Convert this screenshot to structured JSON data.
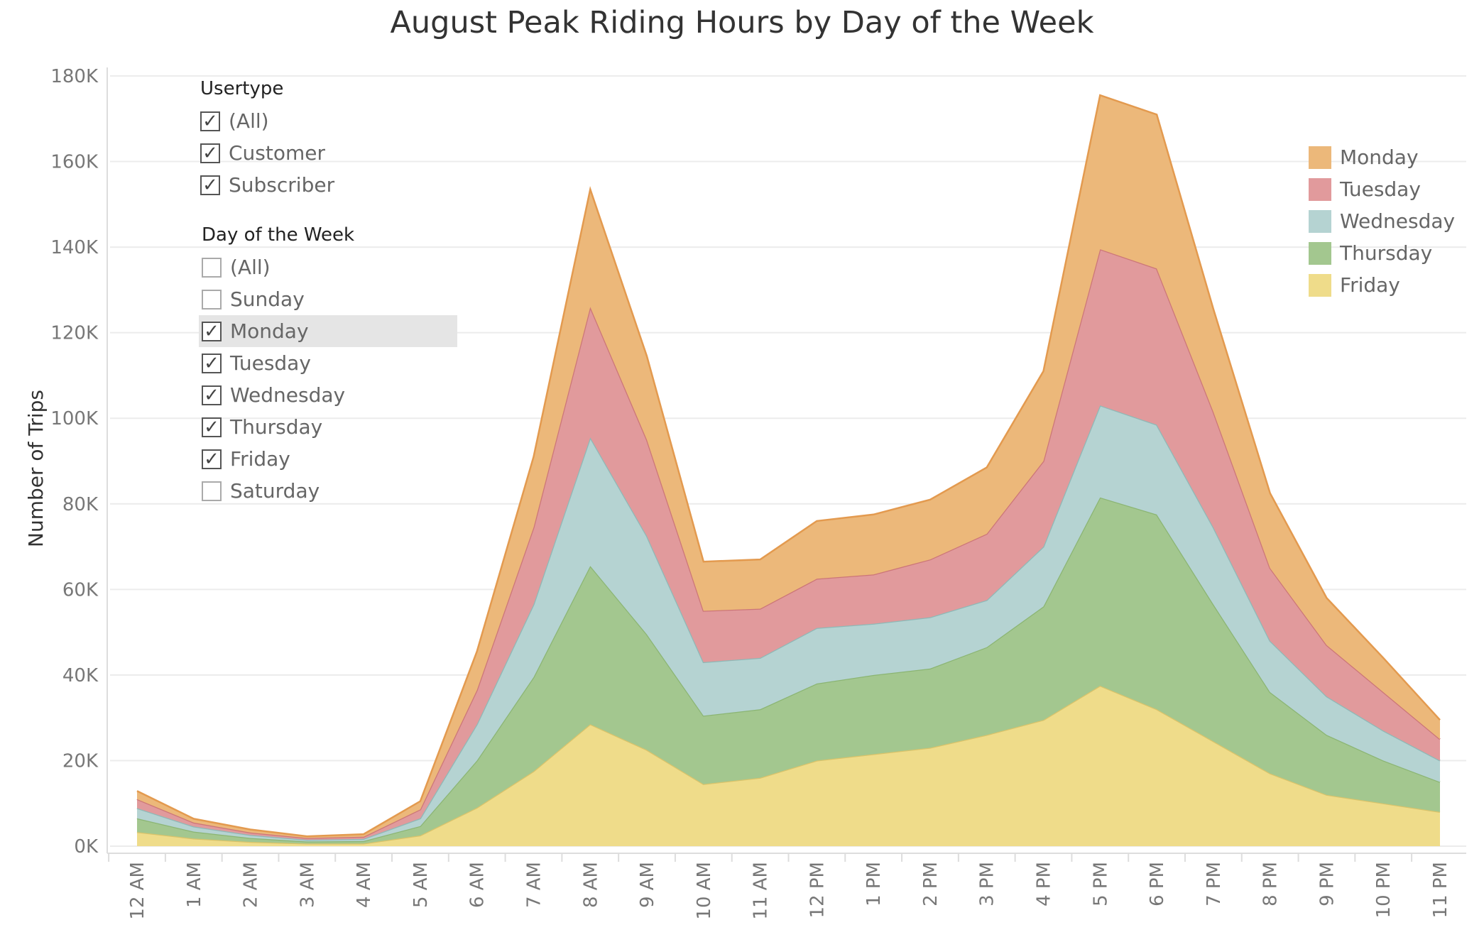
{
  "chart_data": {
    "type": "area",
    "title": "August Peak Riding Hours by Day of the Week",
    "xlabel": "",
    "ylabel": "Number of Trips",
    "stacked": true,
    "ylim": [
      0,
      180000
    ],
    "y_ticks": [
      "0K",
      "20K",
      "40K",
      "60K",
      "80K",
      "100K",
      "120K",
      "140K",
      "160K",
      "180K"
    ],
    "categories": [
      "12 AM",
      "1 AM",
      "2 AM",
      "3 AM",
      "4 AM",
      "5 AM",
      "6 AM",
      "7 AM",
      "8 AM",
      "9 AM",
      "10 AM",
      "11 AM",
      "12 PM",
      "1 PM",
      "2 PM",
      "3 PM",
      "4 PM",
      "5 PM",
      "6 PM",
      "7 PM",
      "8 PM",
      "9 PM",
      "10 PM",
      "11 PM"
    ],
    "series": [
      {
        "name": "Friday",
        "color": "#efdc8a",
        "line": "#d9c36a",
        "values": [
          3300,
          1800,
          1000,
          600,
          600,
          2500,
          9000,
          17500,
          28500,
          22500,
          14500,
          16000,
          20000,
          21500,
          23000,
          26000,
          29500,
          37500,
          32000,
          24500,
          17000,
          12000,
          10000,
          8000
        ]
      },
      {
        "name": "Thursday",
        "color": "#a3c78f",
        "line": "#8bb573",
        "values": [
          3200,
          1600,
          900,
          500,
          600,
          2200,
          11000,
          22000,
          37000,
          27000,
          16000,
          16000,
          18000,
          18500,
          18500,
          20500,
          26500,
          44000,
          45500,
          32000,
          19000,
          14000,
          10000,
          7000
        ]
      },
      {
        "name": "Wednesday",
        "color": "#b5d3d2",
        "line": "#8fb8b6",
        "values": [
          2400,
          1200,
          700,
          400,
          500,
          1800,
          8500,
          17000,
          30000,
          23000,
          12500,
          12000,
          13000,
          12000,
          12000,
          11000,
          14000,
          21500,
          21000,
          18000,
          12000,
          9000,
          7000,
          5000
        ]
      },
      {
        "name": "Tuesday",
        "color": "#e19a9c",
        "line": "#cc7678",
        "values": [
          2100,
          900,
          600,
          400,
          500,
          2100,
          8000,
          18000,
          30500,
          22500,
          12000,
          11500,
          11500,
          11500,
          13500,
          15500,
          20000,
          36500,
          36500,
          27000,
          17000,
          12000,
          9000,
          5000
        ]
      },
      {
        "name": "Monday",
        "color": "#ecb87a",
        "line": "#e39a4f",
        "values": [
          1900,
          900,
          700,
          400,
          600,
          1900,
          9000,
          16500,
          27500,
          19500,
          11500,
          11500,
          13500,
          14000,
          14000,
          15500,
          21000,
          36000,
          36000,
          24000,
          17500,
          11000,
          8000,
          4500
        ]
      }
    ],
    "legend_order": [
      "Monday",
      "Tuesday",
      "Wednesday",
      "Thursday",
      "Friday"
    ],
    "legend_position": "right",
    "grid": "horizontal"
  },
  "filters": {
    "usertype": {
      "title": "Usertype",
      "items": [
        {
          "label": "(All)",
          "checked": true
        },
        {
          "label": "Customer",
          "checked": true
        },
        {
          "label": "Subscriber",
          "checked": true
        }
      ]
    },
    "day_of_week": {
      "title": "Day of the Week",
      "items": [
        {
          "label": "(All)",
          "checked": false
        },
        {
          "label": "Sunday",
          "checked": false
        },
        {
          "label": "Monday",
          "checked": true,
          "highlighted": true
        },
        {
          "label": "Tuesday",
          "checked": true
        },
        {
          "label": "Wednesday",
          "checked": true
        },
        {
          "label": "Thursday",
          "checked": true
        },
        {
          "label": "Friday",
          "checked": true
        },
        {
          "label": "Saturday",
          "checked": false
        }
      ]
    }
  },
  "icons": {
    "checked": "check-mark-icon"
  }
}
